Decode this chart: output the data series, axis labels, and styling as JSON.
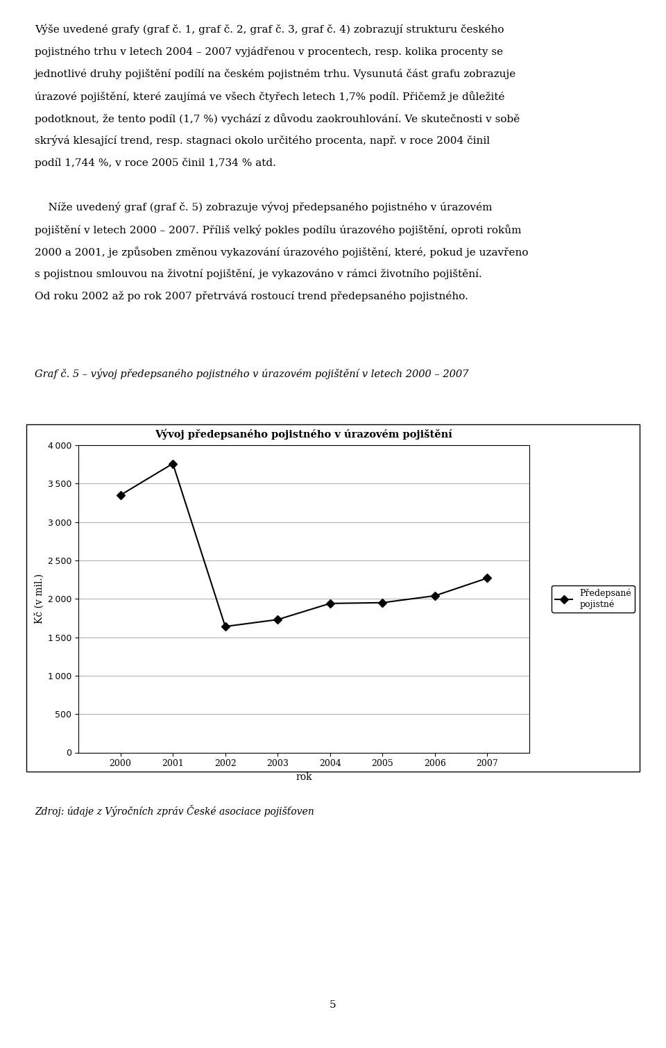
{
  "title": "Vývoj předepsaného pojistného v úrazovém pojištění",
  "xlabel": "rok",
  "ylabel": "Kč (v mil.)",
  "years": [
    2000,
    2001,
    2002,
    2003,
    2004,
    2005,
    2006,
    2007
  ],
  "values": [
    3350,
    3760,
    1640,
    1730,
    1940,
    1950,
    2040,
    2270
  ],
  "legend_label": "Předepsané\npojistné",
  "ylim": [
    0,
    4000
  ],
  "yticks": [
    0,
    500,
    1000,
    1500,
    2000,
    2500,
    3000,
    3500,
    4000
  ],
  "line_color": "#000000",
  "marker": "D",
  "markersize": 6,
  "linewidth": 1.5,
  "background_color": "#ffffff",
  "chart_bg": "#ffffff",
  "grid_color": "#aaaaaa",
  "title_fontsize": 10.5,
  "label_fontsize": 10,
  "tick_fontsize": 9,
  "legend_fontsize": 9,
  "caption_italic": "Zdroj: údaje z Výročních zpráv České asociace pojišťoven",
  "caption_fontsize": 10,
  "subtitle_italic": "Graf č. 5 – vývoj předepsaného pojistného v úrazovém pojištění v letech 2000 – 2007",
  "subtitle_fontsize": 10.5,
  "page_number": "5",
  "para1_lines": [
    "Výše uvedené grafy (graf č. 1, graf č. 2, graf č. 3, graf č. 4) zobrazují strukturu českého",
    "pojistného trhu v letech 2004 – 2007 vyjádřenou v procentech, resp. kolika procenty se",
    "jednotlivé druhy pojištění podílí na českém pojistném trhu. Vysunutá část grafu zobrazuje",
    "úrazové pojištění, které zaujímá ve všech čtyřech letech 1,7% podíl. Přičemž je důležité",
    "podotknout, že tento podíl (1,7 %) vychází z důvodu zaokrouhlování. Ve skutečnosti v sobě",
    "skrývá klesající trend, resp. stagnaci okolo určitého procenta, např. v roce 2004 činil",
    "podíl 1,744 %, v roce 2005 činil 1,734 % atd."
  ],
  "para2_lines": [
    "    Níže uvedený graf (graf č. 5) zobrazuje vývoj předepsaného pojistného v úrazovém",
    "pojištění v letech 2000 – 2007. Příliš velký pokles podílu úrazového pojištění, oproti rokům",
    "2000 a 2001, je způsoben změnou vykazování úrazového pojištění, které, pokud je uzavřeno",
    "s pojistnou smlouvou na životní pojištění, je vykazováno v rámci životního pojištění.",
    "Od roku 2002 až po rok 2007 přetrvává rostoucí trend předepsaného pojistného."
  ]
}
